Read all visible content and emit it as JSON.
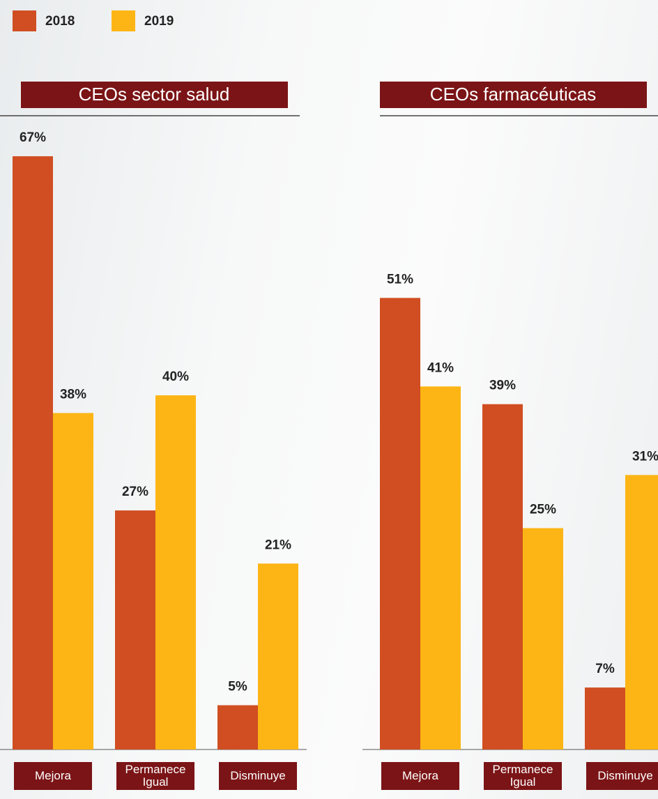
{
  "chart_data": [
    {
      "type": "bar",
      "title": "CEOs sector  salud",
      "categories": [
        "Mejora",
        "Permanece Igual",
        "Disminuye"
      ],
      "series": [
        {
          "name": "2018",
          "color": "#d04e22",
          "values": [
            67,
            27,
            5
          ],
          "value_labels": [
            "67%",
            "27%",
            "5%"
          ]
        },
        {
          "name": "2019",
          "color": "#fdb515",
          "values": [
            38,
            40,
            21
          ],
          "value_labels": [
            "38%",
            "40%",
            "21%"
          ]
        }
      ]
    },
    {
      "type": "bar",
      "title": "CEOs farmacéuticas",
      "categories": [
        "Mejora",
        "Permanece Igual",
        "Disminuye"
      ],
      "series": [
        {
          "color": "#d04e22",
          "values": [
            51,
            39,
            7
          ],
          "value_labels": [
            "51%",
            "39%",
            "7%"
          ]
        },
        {
          "color": "#fdb515",
          "values": [
            41,
            25,
            31
          ],
          "value_labels": [
            "41%",
            "25%",
            "31%"
          ]
        }
      ]
    }
  ]
}
